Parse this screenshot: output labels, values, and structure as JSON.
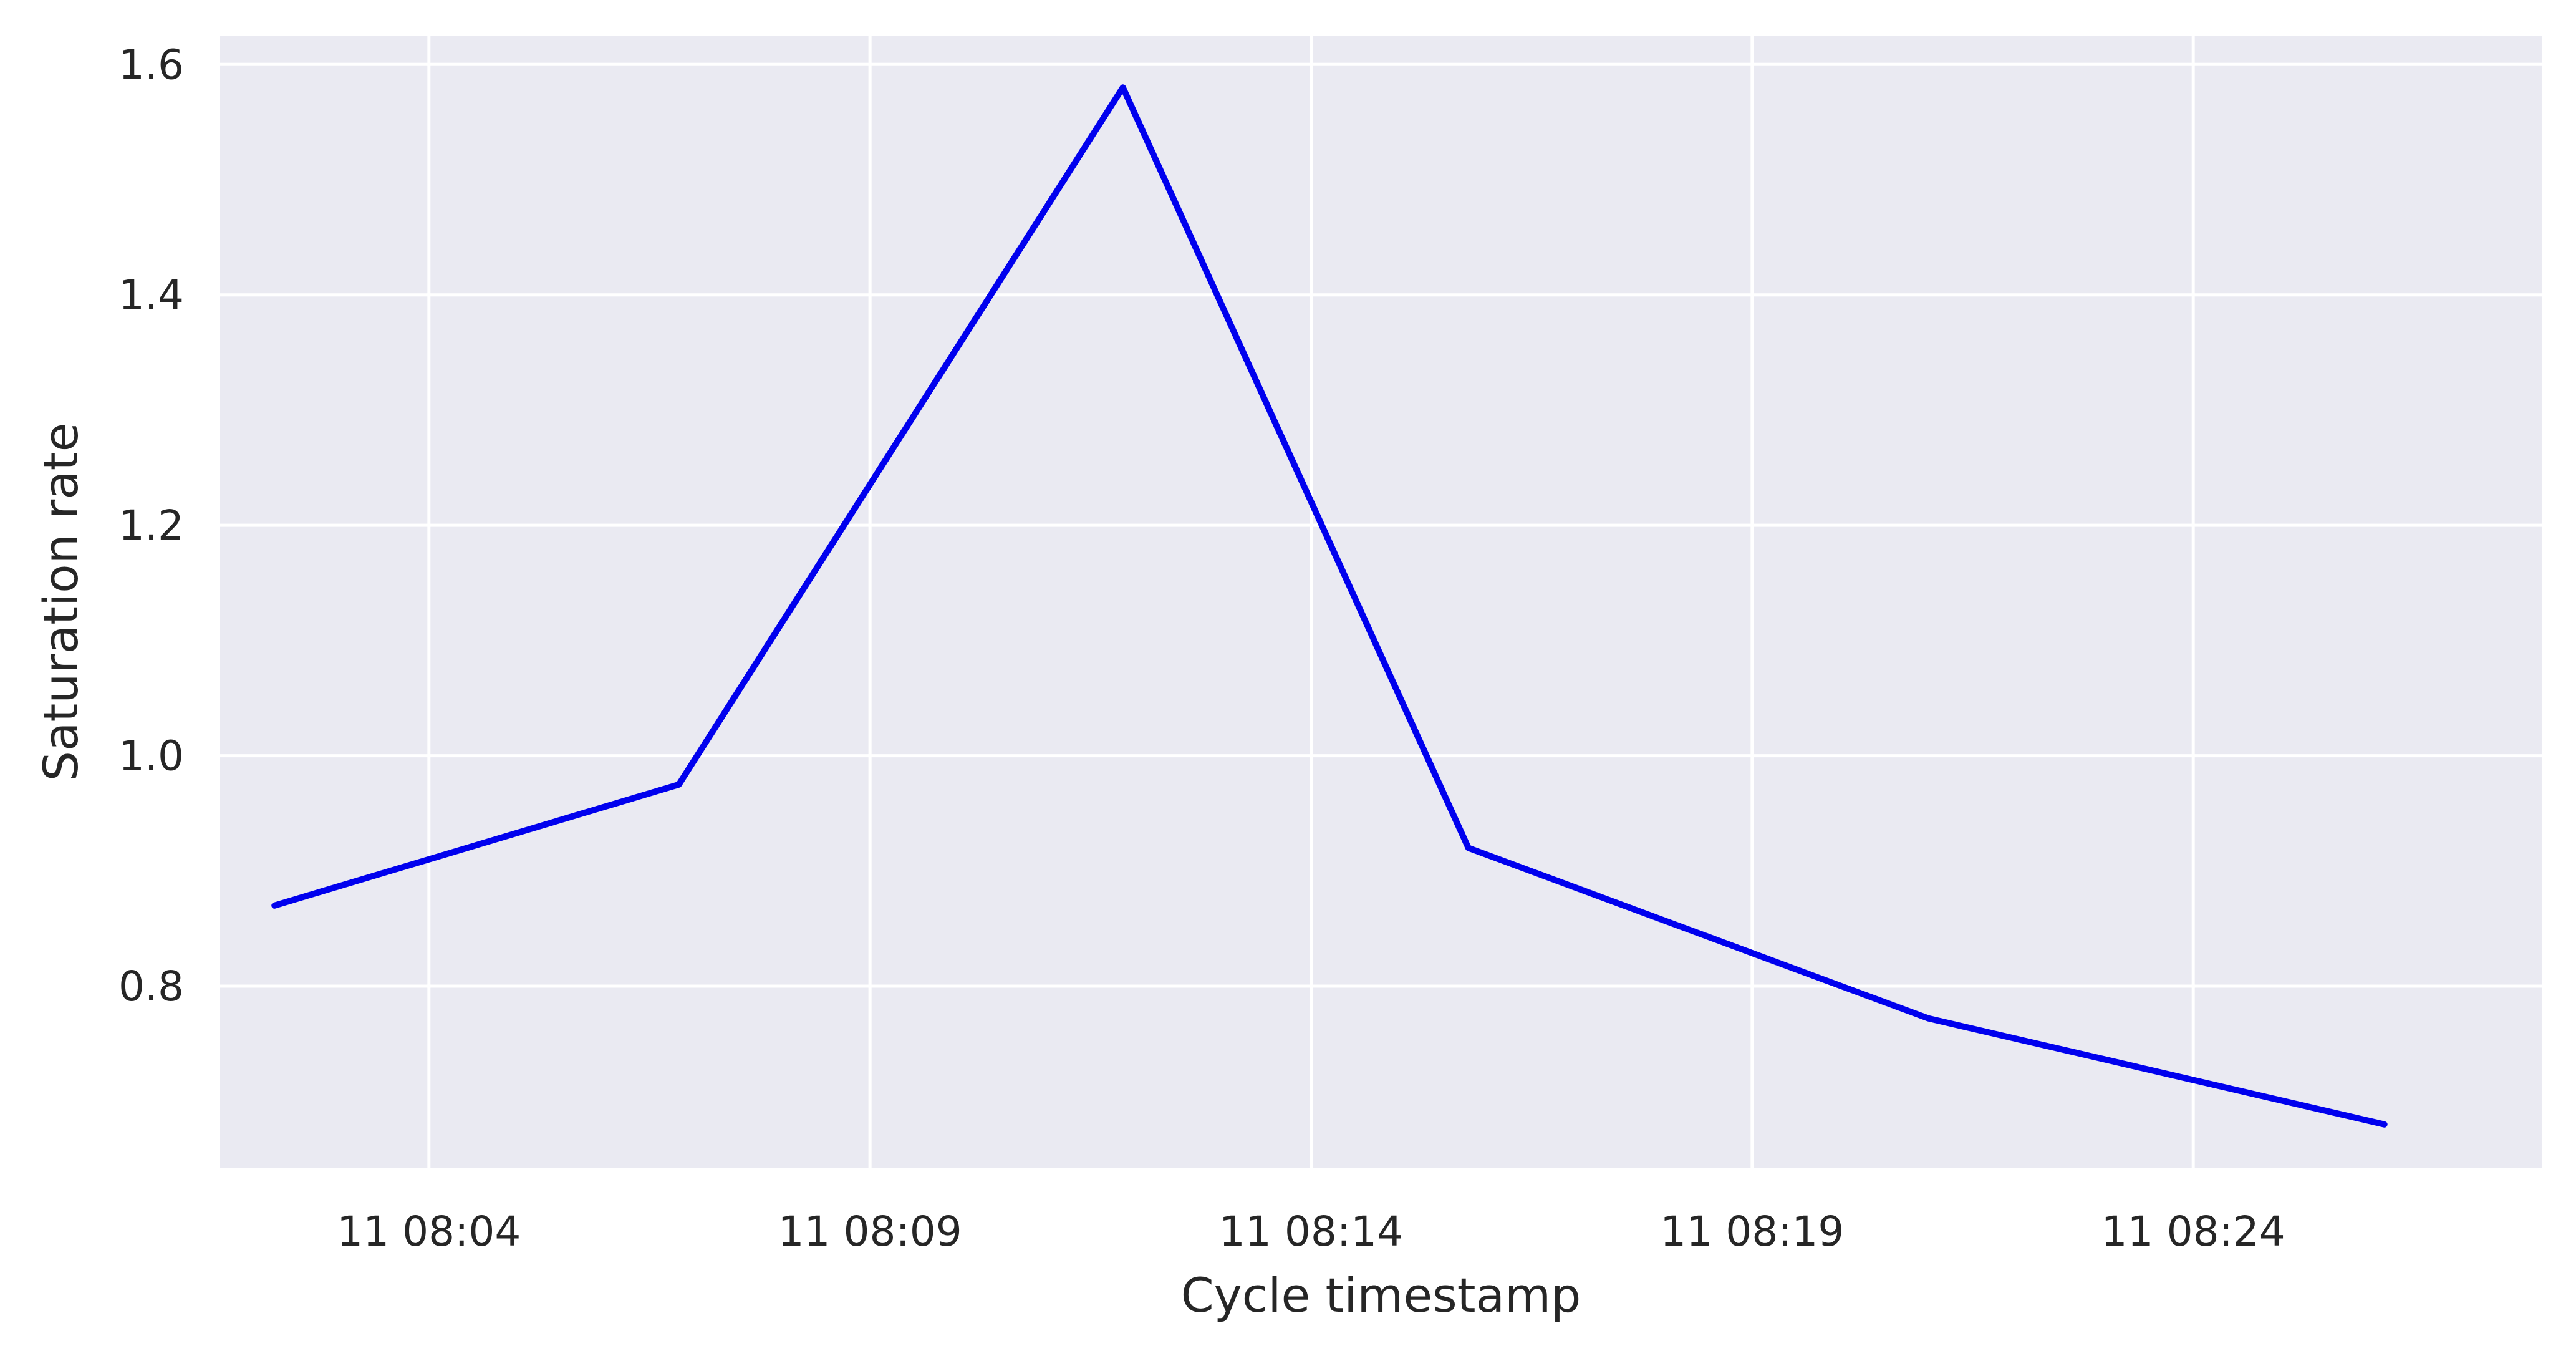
{
  "chart_data": {
    "type": "line",
    "title": "",
    "xlabel": "Cycle timestamp",
    "ylabel": "Saturation rate",
    "x_tick_labels": [
      "11 08:04",
      "11 08:09",
      "11 08:14",
      "11 08:19",
      "11 08:24"
    ],
    "y_tick_labels": [
      "0.8",
      "1.0",
      "1.2",
      "1.4",
      "1.6"
    ],
    "grid": true,
    "colors": {
      "background": "#eaeaf2",
      "grid": "#ffffff",
      "line": "#0000ee"
    },
    "series": [
      {
        "x": [
          "08:02:15",
          "08:06:50",
          "08:11:52",
          "08:15:47",
          "08:21:00",
          "08:26:10"
        ],
        "y": [
          0.87,
          0.975,
          1.58,
          0.92,
          0.772,
          0.68
        ]
      }
    ]
  }
}
